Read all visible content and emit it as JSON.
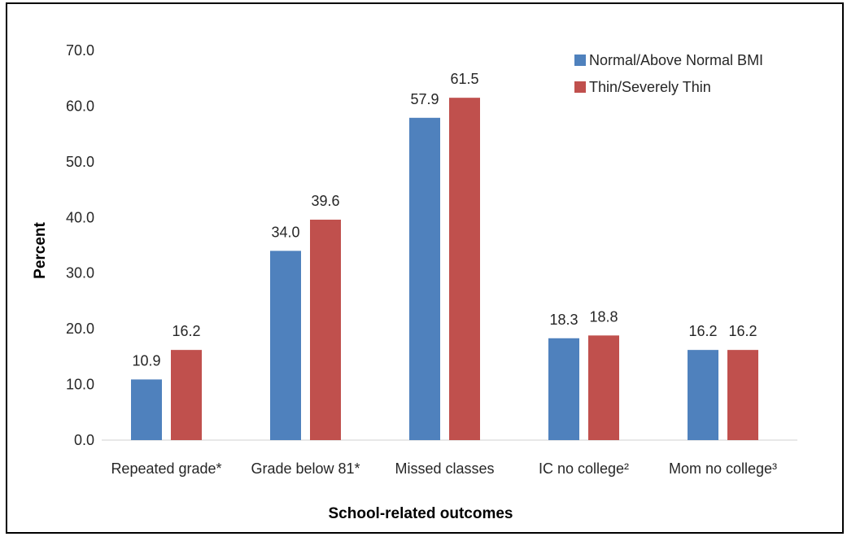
{
  "chart_data": {
    "type": "bar",
    "title": "",
    "xlabel": "School-related outcomes",
    "ylabel": "Percent",
    "ylim": [
      0,
      70
    ],
    "ytick_step": 10,
    "ytick_format_decimals": 1,
    "grid": false,
    "legend_position": "top-right",
    "categories": [
      "Repeated grade*",
      "Grade below 81*",
      "Missed classes",
      "IC no college²",
      "Mom no college³"
    ],
    "series": [
      {
        "name": "Normal/Above Normal BMI",
        "color": "#4f81bd",
        "values": [
          10.9,
          34.0,
          57.9,
          18.3,
          16.2
        ],
        "labels": [
          "10.9",
          "34.0",
          "57.9",
          "18.3",
          "16.2"
        ]
      },
      {
        "name": "Thin/Severely Thin",
        "color": "#c0504d",
        "values": [
          16.2,
          39.6,
          61.5,
          18.8,
          16.2
        ],
        "labels": [
          "16.2",
          "39.6",
          "61.5",
          "18.8",
          "16.2"
        ]
      }
    ]
  }
}
